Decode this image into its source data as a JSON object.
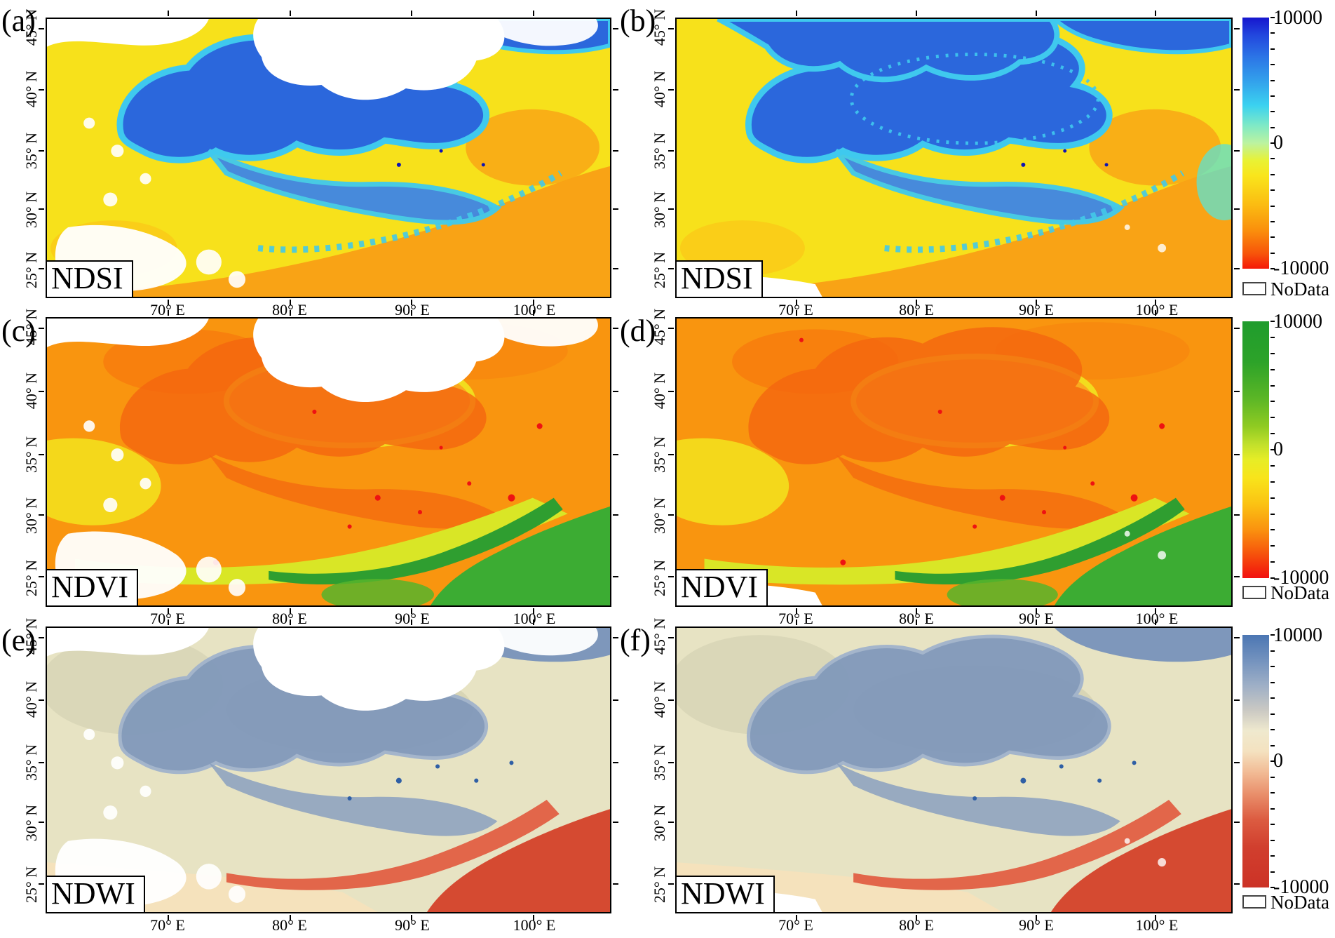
{
  "figure": {
    "description_labels_only": "six-panel satellite index map figure"
  },
  "panels": [
    {
      "id": "a",
      "letter": "(a)",
      "index_label": "NDSI"
    },
    {
      "id": "b",
      "letter": "(b)",
      "index_label": "NDSI"
    },
    {
      "id": "c",
      "letter": "(c)",
      "index_label": "NDVI"
    },
    {
      "id": "d",
      "letter": "(d)",
      "index_label": "NDVI"
    },
    {
      "id": "e",
      "letter": "(e)",
      "index_label": "NDWI"
    },
    {
      "id": "f",
      "letter": "(f)",
      "index_label": "NDWI"
    }
  ],
  "axes": {
    "lat": [
      "45° N",
      "40° N",
      "35° N",
      "30° N",
      "25° N"
    ],
    "lon": [
      "70° E",
      "80° E",
      "90° E",
      "100° E"
    ]
  },
  "colorbars": [
    {
      "index": "NDSI",
      "max_label": "10000",
      "mid_label": "0",
      "min_label": "-10000",
      "nodata_label": "NoData",
      "range": [
        -10000,
        10000
      ],
      "stops": [
        {
          "p": 0,
          "c": "#1616CE"
        },
        {
          "p": 7,
          "c": "#2247DE"
        },
        {
          "p": 16,
          "c": "#2C76E6"
        },
        {
          "p": 26,
          "c": "#33A4EC"
        },
        {
          "p": 35,
          "c": "#3BD2F0"
        },
        {
          "p": 43,
          "c": "#7FE9C6"
        },
        {
          "p": 50,
          "c": "#BCF3A0"
        },
        {
          "p": 57,
          "c": "#E9F234"
        },
        {
          "p": 63,
          "c": "#F9E51C"
        },
        {
          "p": 74,
          "c": "#FBBE12"
        },
        {
          "p": 85,
          "c": "#FA8E0C"
        },
        {
          "p": 94,
          "c": "#F7540A"
        },
        {
          "p": 100,
          "c": "#F51808"
        }
      ]
    },
    {
      "index": "NDVI",
      "max_label": "10000",
      "mid_label": "0",
      "min_label": "-10000",
      "nodata_label": "NoData",
      "range": [
        -10000,
        10000
      ],
      "stops": [
        {
          "p": 0,
          "c": "#1F9C2D"
        },
        {
          "p": 16,
          "c": "#2DA329"
        },
        {
          "p": 30,
          "c": "#5BB626"
        },
        {
          "p": 41,
          "c": "#90CB22"
        },
        {
          "p": 48,
          "c": "#C2E02B"
        },
        {
          "p": 54,
          "c": "#E7ED26"
        },
        {
          "p": 61,
          "c": "#F8E41B"
        },
        {
          "p": 71,
          "c": "#FBC313"
        },
        {
          "p": 81,
          "c": "#FA930F"
        },
        {
          "p": 89,
          "c": "#F75E0C"
        },
        {
          "p": 96,
          "c": "#F42C0C"
        },
        {
          "p": 100,
          "c": "#F21111"
        }
      ]
    },
    {
      "index": "NDWI",
      "max_label": "10000",
      "mid_label": "0",
      "min_label": "-10000",
      "nodata_label": "NoData",
      "range": [
        -10000,
        10000
      ],
      "stops": [
        {
          "p": 0,
          "c": "#4B76B3"
        },
        {
          "p": 10,
          "c": "#7392BE"
        },
        {
          "p": 20,
          "c": "#9EAFC6"
        },
        {
          "p": 30,
          "c": "#CBC9C3"
        },
        {
          "p": 38,
          "c": "#EFE9CE"
        },
        {
          "p": 46,
          "c": "#F4E2C0"
        },
        {
          "p": 54,
          "c": "#F2BD97"
        },
        {
          "p": 63,
          "c": "#E98F6B"
        },
        {
          "p": 73,
          "c": "#DC5C41"
        },
        {
          "p": 84,
          "c": "#D13F2E"
        },
        {
          "p": 100,
          "c": "#CC3226"
        }
      ]
    }
  ],
  "map_palette": {
    "ndsi": {
      "background_yellow": "#F7E11B",
      "snow_blue": "#2B67DC",
      "snow_cyan_fringe": "#3FC9EE",
      "south_orange": "#F9A315",
      "nodata_white": "#FFFFFF"
    },
    "ndvi": {
      "background_orange": "#F9950F",
      "mountain_red_orange": "#F4650F",
      "lowland_yellow": "#D9E626",
      "vegetation_green": "#3CAC33",
      "water_red": "#EE1212",
      "nodata_white": "#FFFFFF"
    },
    "ndwi": {
      "background_sage": "#E7E3C3",
      "mountain_grayblue": "#7E97BB",
      "dry_red": "#D54A31",
      "arc_salmon": "#E2664A",
      "lake_blue": "#2F5FA5",
      "nodata_white": "#FFFFFF"
    }
  }
}
